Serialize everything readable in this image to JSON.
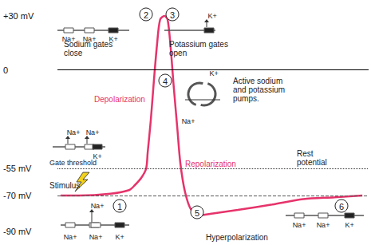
{
  "chart_data": {
    "type": "line",
    "x": [
      1,
      7,
      17,
      23,
      25,
      27,
      28.5,
      29,
      30,
      31,
      32,
      33,
      34.4,
      35.4,
      36.4,
      37.4,
      38.5,
      39.5,
      41,
      43,
      46,
      50,
      58,
      69,
      79,
      89,
      98
    ],
    "values": [
      -70,
      -70,
      -69,
      -67,
      -64,
      -60,
      -55,
      -46,
      -28,
      -6,
      14,
      28,
      30,
      28,
      12,
      -10,
      -32,
      -52,
      -68,
      -78,
      -81,
      -80,
      -78,
      -75,
      -72,
      -71,
      -70
    ],
    "color": "#e6336b",
    "xlim": [
      0,
      100
    ],
    "ylim": [
      -90,
      30
    ],
    "yticks": [
      {
        "value": 30,
        "label": "+30 mV"
      },
      0,
      {
        "value": -55,
        "label": "-55 mV"
      },
      {
        "value": -70,
        "label": "-70 mV"
      },
      {
        "value": -90,
        "label": "-90 mV"
      }
    ],
    "grid": false,
    "tick_labels": "y",
    "reference_lines": [
      {
        "value": 0,
        "line_style": "solid"
      },
      {
        "value": -55,
        "line_style": "dotted"
      },
      {
        "value": -70,
        "line_style": "dashed"
      }
    ],
    "annotations": [
      {
        "text": "Sodium gates\nclose"
      },
      {
        "text": "Potassium gates\nopen"
      },
      {
        "text": "Depolarization",
        "color": "#e6336b"
      },
      {
        "text": "Repolarization",
        "color": "#e6336b"
      },
      {
        "text": "Active sodium\nand potassium\npumps."
      },
      {
        "text": "Gate threshold"
      },
      {
        "text": "Stimulus"
      },
      {
        "text": "Rest\npotential"
      },
      {
        "text": "Hyperpolarization"
      }
    ],
    "stages": [
      1,
      2,
      3,
      4,
      5,
      6
    ],
    "gates": [
      {
        "labels": [
          "Na+",
          "Na+",
          "Na+",
          "K+"
        ]
      },
      {
        "labels": [
          "Na+",
          "Na+",
          "K+"
        ]
      },
      {
        "labels": [
          "Na+",
          "Na+",
          "K+"
        ]
      },
      {
        "labels": [
          "K+"
        ]
      },
      {
        "labels": [
          "Na+",
          "Na+",
          "K+"
        ]
      },
      {
        "labels": [
          "K+",
          "Na+"
        ]
      }
    ]
  }
}
